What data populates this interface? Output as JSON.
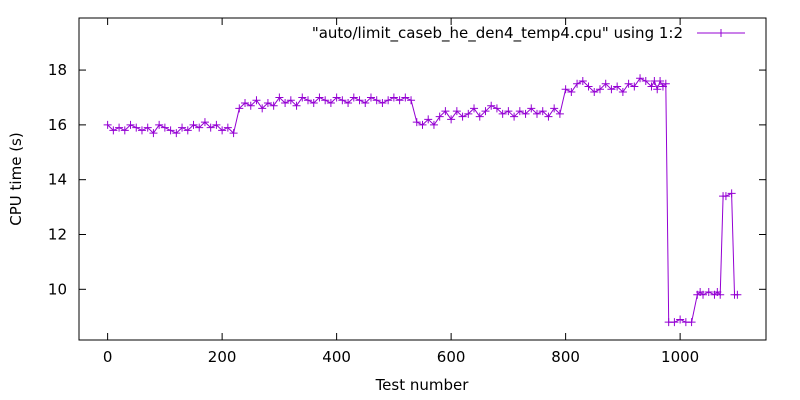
{
  "chart_data": {
    "type": "line",
    "xlabel": "Test number",
    "ylabel": "CPU time (s)",
    "xlim": [
      -50,
      1150
    ],
    "ylim": [
      8.15,
      19.9
    ],
    "xticks": [
      0,
      200,
      400,
      600,
      800,
      1000
    ],
    "yticks": [
      10,
      12,
      14,
      16,
      18
    ],
    "grid": false,
    "legend_position": "top-right",
    "series": [
      {
        "name": "\"auto/limit_caseb_he_den4_temp4.cpu\" using 1:2",
        "color": "#9400d3",
        "marker": "plus",
        "x": [
          0,
          10,
          20,
          30,
          40,
          50,
          60,
          70,
          80,
          90,
          100,
          110,
          120,
          130,
          140,
          150,
          160,
          170,
          180,
          190,
          200,
          210,
          220,
          230,
          240,
          250,
          260,
          270,
          280,
          290,
          300,
          310,
          320,
          330,
          340,
          350,
          360,
          370,
          380,
          390,
          400,
          410,
          420,
          430,
          440,
          450,
          460,
          470,
          480,
          490,
          500,
          510,
          520,
          530,
          540,
          550,
          560,
          570,
          580,
          590,
          600,
          610,
          620,
          630,
          640,
          650,
          660,
          670,
          680,
          690,
          700,
          710,
          720,
          730,
          740,
          750,
          760,
          770,
          780,
          790,
          800,
          810,
          820,
          830,
          840,
          850,
          860,
          870,
          880,
          890,
          900,
          910,
          920,
          930,
          940,
          950,
          955,
          960,
          965,
          970,
          975,
          980,
          990,
          1000,
          1010,
          1020,
          1030,
          1035,
          1040,
          1050,
          1060,
          1065,
          1070,
          1075,
          1080,
          1090,
          1095,
          1100
        ],
        "y": [
          16.0,
          15.8,
          15.9,
          15.8,
          16.0,
          15.9,
          15.8,
          15.9,
          15.7,
          16.0,
          15.9,
          15.8,
          15.7,
          15.9,
          15.8,
          16.0,
          15.9,
          16.1,
          15.9,
          16.0,
          15.8,
          15.9,
          15.7,
          16.6,
          16.8,
          16.7,
          16.9,
          16.6,
          16.8,
          16.7,
          17.0,
          16.8,
          16.9,
          16.7,
          17.0,
          16.9,
          16.8,
          17.0,
          16.9,
          16.8,
          17.0,
          16.9,
          16.8,
          17.0,
          16.9,
          16.8,
          17.0,
          16.9,
          16.8,
          16.9,
          17.0,
          16.9,
          17.0,
          16.9,
          16.1,
          16.0,
          16.2,
          16.0,
          16.3,
          16.5,
          16.2,
          16.5,
          16.3,
          16.4,
          16.6,
          16.3,
          16.5,
          16.7,
          16.6,
          16.4,
          16.5,
          16.3,
          16.5,
          16.4,
          16.6,
          16.4,
          16.5,
          16.3,
          16.6,
          16.4,
          17.3,
          17.2,
          17.5,
          17.6,
          17.4,
          17.2,
          17.3,
          17.5,
          17.3,
          17.4,
          17.2,
          17.5,
          17.4,
          17.7,
          17.6,
          17.4,
          17.6,
          17.3,
          17.6,
          17.4,
          17.5,
          8.8,
          8.8,
          8.9,
          8.8,
          8.8,
          9.8,
          9.9,
          9.8,
          9.9,
          9.8,
          9.9,
          9.8,
          13.4,
          13.4,
          13.5,
          9.8,
          9.8
        ]
      }
    ]
  }
}
